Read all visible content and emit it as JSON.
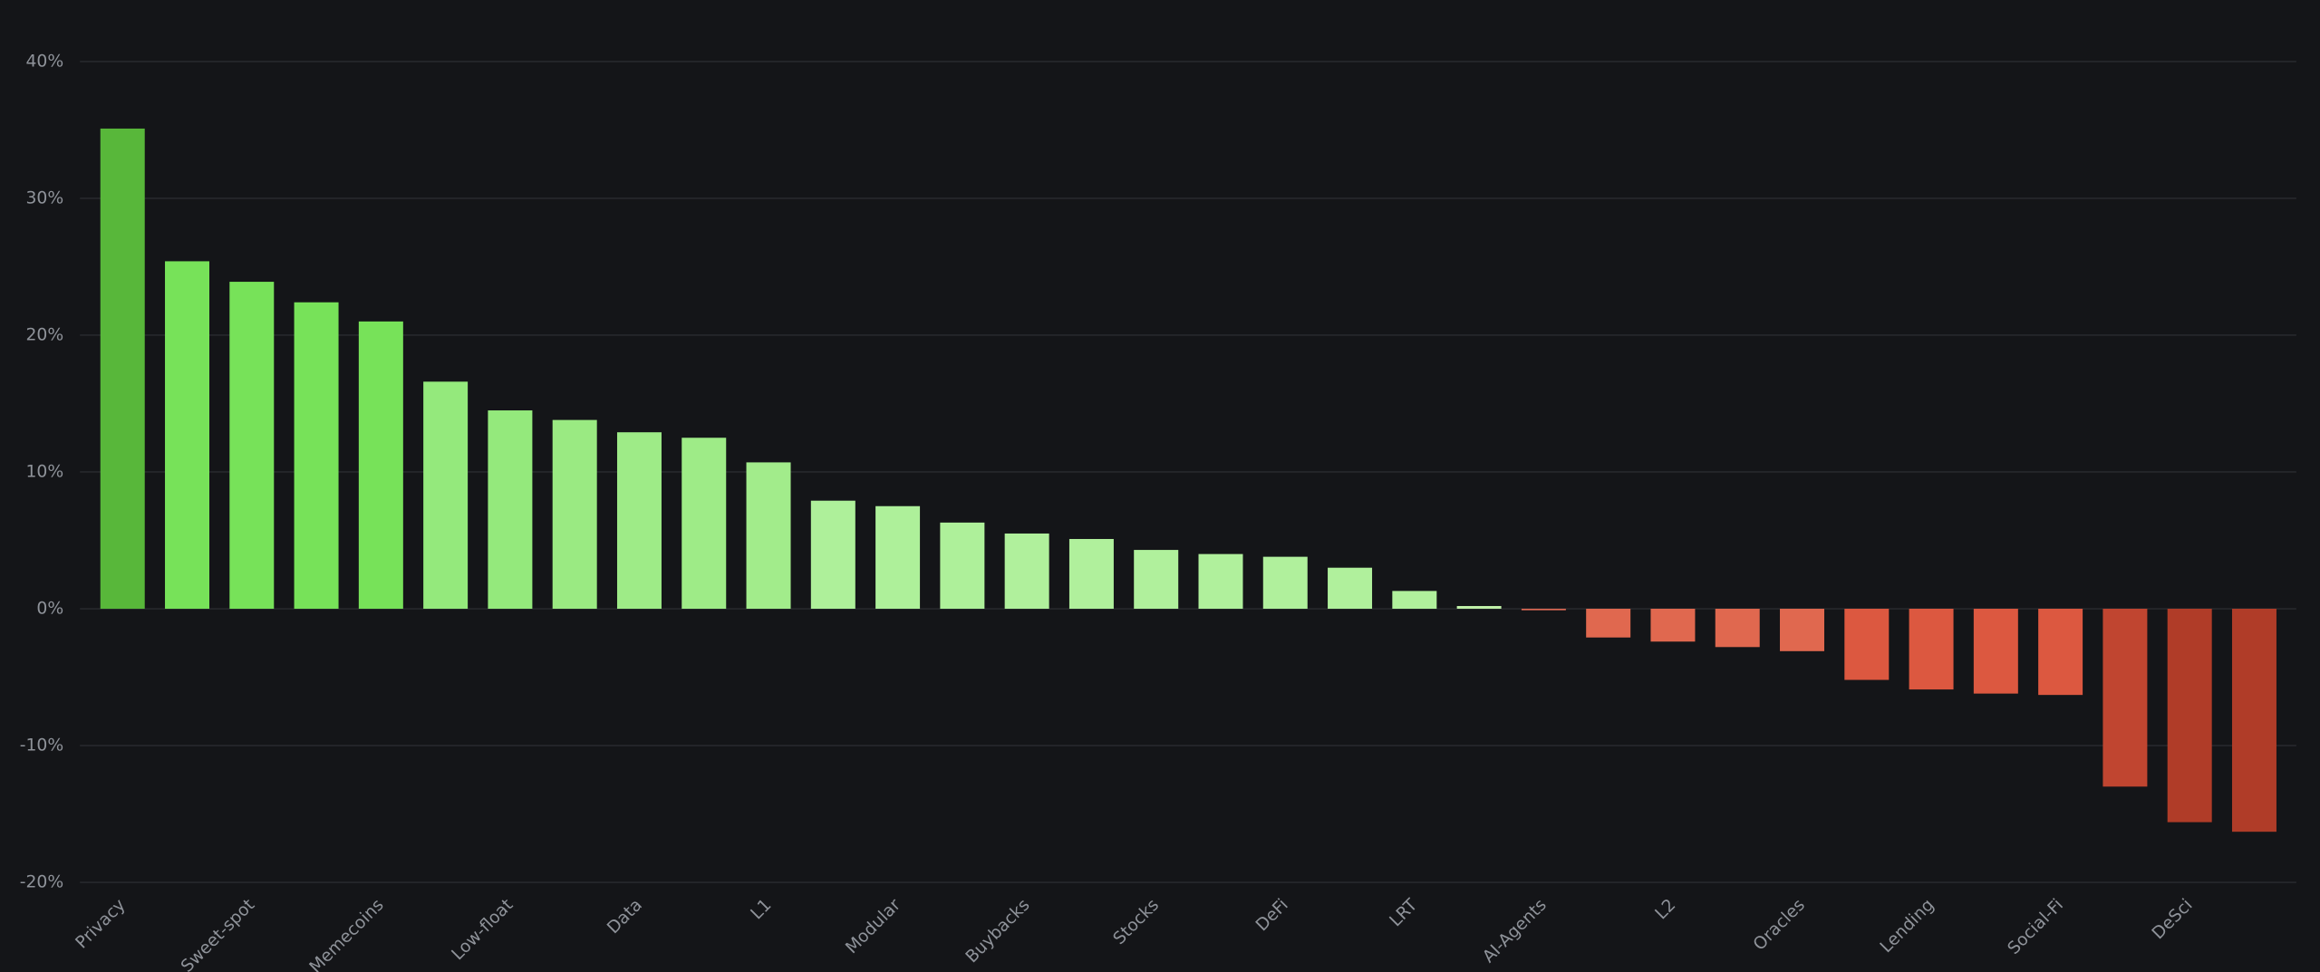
{
  "chart_data": {
    "type": "bar",
    "categories": [
      "Privacy",
      null,
      "Sweet-spot",
      null,
      "Memecoins",
      null,
      "Low-float",
      null,
      "Data",
      null,
      "L1",
      null,
      "Modular",
      null,
      "Buybacks",
      null,
      "Stocks",
      null,
      "DeFi",
      null,
      "LRT",
      null,
      "AI-Agents",
      null,
      "L2",
      null,
      "Oracles",
      null,
      "Lending",
      null,
      "Social-Fi",
      null,
      "DeSci",
      null
    ],
    "values": [
      35.1,
      25.4,
      23.9,
      22.4,
      21.0,
      16.6,
      14.5,
      13.8,
      12.9,
      12.5,
      10.7,
      7.9,
      7.5,
      6.3,
      5.5,
      5.1,
      4.3,
      4.0,
      3.8,
      3.0,
      1.3,
      0.2,
      -0.1,
      -2.1,
      -2.4,
      -2.8,
      -3.1,
      -5.2,
      -5.9,
      -6.2,
      -6.3,
      -13.0,
      -15.6,
      -16.3
    ],
    "colors": [
      "#58b73a",
      "#77e259",
      "#77e259",
      "#77e259",
      "#77e259",
      "#94e97c",
      "#94e97c",
      "#9aea82",
      "#9eeb87",
      "#9eeb87",
      "#a2ec8b",
      "#aef09a",
      "#aef09a",
      "#aef09a",
      "#b0f09c",
      "#b0f09c",
      "#b0f09c",
      "#b0f09c",
      "#b0f09c",
      "#b0f09c",
      "#b0f09c",
      "#c0f0a8",
      "#e06a55",
      "#e0684f",
      "#e0684f",
      "#e0684f",
      "#e0684f",
      "#dc5840",
      "#dc5840",
      "#dc5840",
      "#dc5840",
      "#c04530",
      "#b03c28",
      "#b03c28"
    ],
    "ylim": [
      -20,
      40
    ],
    "yticks": [
      {
        "value": -20,
        "label": "-20%"
      },
      {
        "value": -10,
        "label": "-10%"
      },
      {
        "value": 0,
        "label": "0%"
      },
      {
        "value": 10,
        "label": "10%"
      },
      {
        "value": 20,
        "label": "20%"
      },
      {
        "value": 30,
        "label": "30%"
      },
      {
        "value": 40,
        "label": "40%"
      }
    ],
    "grid": true
  }
}
